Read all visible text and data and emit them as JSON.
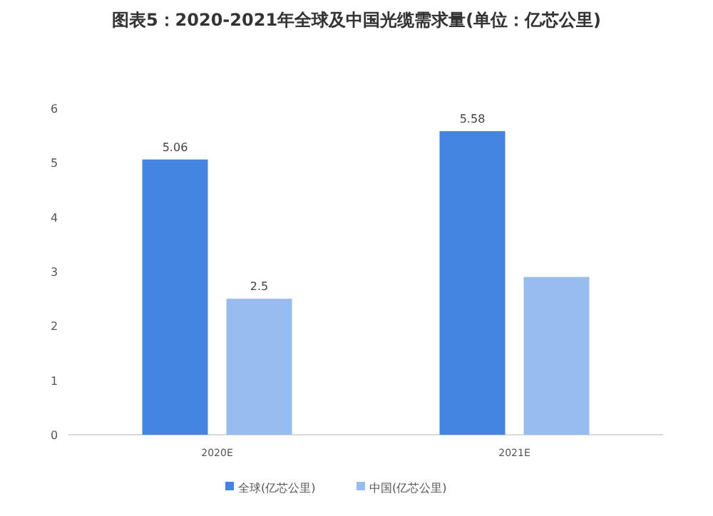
{
  "chart_data": {
    "type": "bar",
    "title": "图表5：2020-2021年全球及中国光缆需求量(单位：亿芯公里)",
    "categories": [
      "2020E",
      "2021E"
    ],
    "series": [
      {
        "name": "全球(亿芯公里)",
        "color": "#4285e0",
        "values": [
          5.06,
          5.58
        ],
        "value_labels": [
          "5.06",
          "5.58"
        ]
      },
      {
        "name": "中国(亿芯公里)",
        "color": "#97bdf0",
        "values": [
          2.5,
          2.9
        ],
        "value_labels": [
          "2.5",
          null
        ]
      }
    ],
    "ylim": [
      0,
      6
    ],
    "yticks": [
      0,
      1,
      2,
      3,
      4,
      5,
      6
    ],
    "grid": false,
    "legend": "bottom"
  }
}
